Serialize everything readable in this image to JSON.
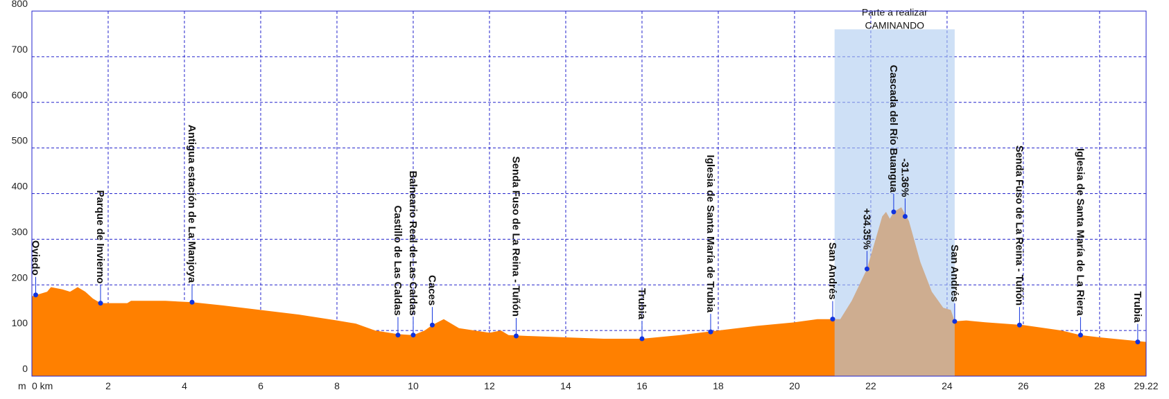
{
  "chart_data": {
    "type": "area",
    "color": "#ff8000",
    "grid": true,
    "grid_color": "#2222cc",
    "x_unit": "km",
    "y_unit": "m",
    "x": [
      0,
      0.4,
      0.5,
      0.8,
      1.0,
      1.2,
      1.4,
      1.6,
      1.8,
      2.5,
      2.6,
      3.5,
      4.2,
      5,
      6,
      7,
      8,
      8.5,
      9,
      9.6,
      10.0,
      10.3,
      10.5,
      10.8,
      11.2,
      12,
      12.3,
      12.5,
      13,
      14,
      15,
      16,
      17,
      18,
      19,
      20,
      20.6,
      21.2,
      21.5,
      21.9,
      22.3,
      22.4,
      22.5,
      22.6,
      22.8,
      23.0,
      23.3,
      23.6,
      23.9,
      24.1,
      24.2,
      24.5,
      25,
      26,
      27,
      27.5,
      28,
      29.22
    ],
    "values": [
      175,
      185,
      195,
      190,
      185,
      195,
      185,
      170,
      160,
      160,
      165,
      165,
      162,
      155,
      145,
      135,
      122,
      115,
      100,
      92,
      90,
      100,
      112,
      125,
      105,
      95,
      100,
      90,
      88,
      85,
      82,
      82,
      90,
      100,
      110,
      118,
      125,
      125,
      165,
      235,
      350,
      360,
      345,
      360,
      370,
      340,
      250,
      185,
      150,
      145,
      120,
      122,
      118,
      112,
      100,
      90,
      85,
      75
    ],
    "xlim": [
      0,
      29.22
    ],
    "xticks": [
      {
        "value": 0,
        "label": "0 km"
      },
      2,
      4,
      6,
      8,
      10,
      12,
      14,
      16,
      18,
      20,
      22,
      24,
      26,
      28,
      29.22
    ],
    "ylim": [
      0,
      800
    ],
    "yticks": [
      0,
      100,
      200,
      300,
      400,
      500,
      600,
      700,
      800
    ],
    "highlight": {
      "xlim": [
        21.05,
        24.2
      ],
      "top": 760,
      "color": "#aecbf0",
      "lines": [
        "Parte a realizar",
        "CAMINANDO"
      ]
    },
    "waypoints": [
      {
        "label": "Oviedo",
        "x": 0.1,
        "y": 178
      },
      {
        "label": "Parque de Invierno",
        "x": 1.8,
        "y": 160
      },
      {
        "label": "Antigua estación de La Manjoya",
        "x": 4.2,
        "y": 162
      },
      {
        "label": "Castillo de Las Caldas",
        "x": 9.6,
        "y": 90
      },
      {
        "label": "Balneario Real de Las Caldas",
        "x": 10.0,
        "y": 90
      },
      {
        "label": "Caces",
        "x": 10.5,
        "y": 112
      },
      {
        "label": "Senda Fuso de La Reina - Tuñón",
        "x": 12.7,
        "y": 88
      },
      {
        "label": "Trubia",
        "x": 16.0,
        "y": 82
      },
      {
        "label": "Iglesia de Santa María de Trubia",
        "x": 17.8,
        "y": 97
      },
      {
        "label": "San Andrés",
        "x": 21.0,
        "y": 125
      },
      {
        "label": "+34.35%",
        "x": 21.9,
        "y": 235
      },
      {
        "label": "Cascada del Río Buangua",
        "x": 22.6,
        "y": 360
      },
      {
        "label": "-31.36%",
        "x": 22.9,
        "y": 350
      },
      {
        "label": "San Andrés",
        "x": 24.2,
        "y": 120
      },
      {
        "label": "Senda Fuso de La Reina - Tuñón",
        "x": 25.9,
        "y": 112
      },
      {
        "label": "Iglesia de Santa María de La Riera",
        "x": 27.5,
        "y": 90
      },
      {
        "label": "Trubia",
        "x": 29.0,
        "y": 75
      }
    ]
  }
}
